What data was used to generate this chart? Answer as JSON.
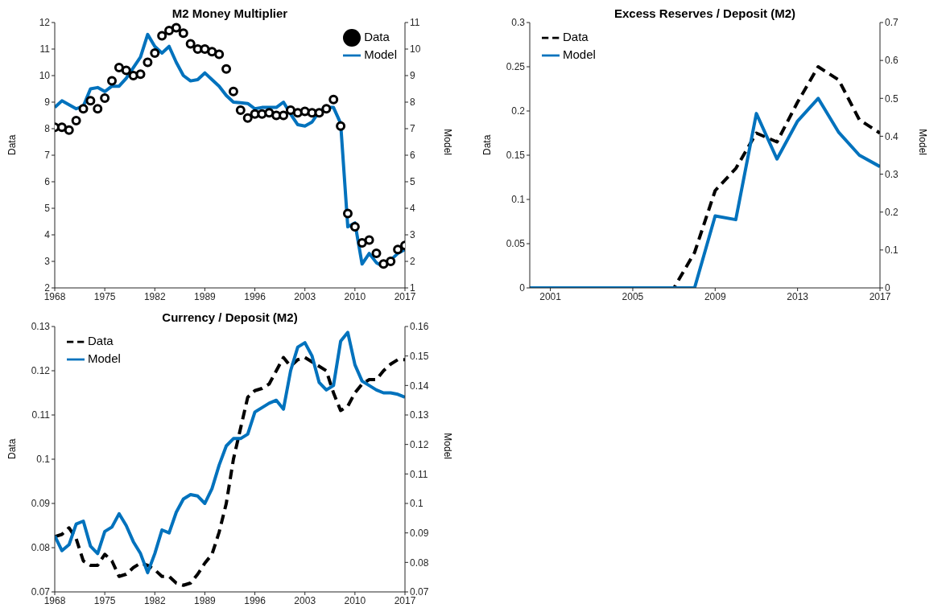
{
  "chart_data": [
    {
      "type": "line",
      "title": "M2 Money Multiplier",
      "ylabel": "Data",
      "y2label": "Model",
      "x": [
        1968,
        1969,
        1970,
        1971,
        1972,
        1973,
        1974,
        1975,
        1976,
        1977,
        1978,
        1979,
        1980,
        1981,
        1982,
        1983,
        1984,
        1985,
        1986,
        1987,
        1988,
        1989,
        1990,
        1991,
        1992,
        1993,
        1994,
        1995,
        1996,
        1997,
        1998,
        1999,
        2000,
        2001,
        2002,
        2003,
        2004,
        2005,
        2006,
        2007,
        2008,
        2009,
        2010,
        2011,
        2012,
        2013,
        2014,
        2015,
        2016,
        2017
      ],
      "series": [
        {
          "name": "Data",
          "type": "scatter",
          "color": "#000000",
          "marker": "circle",
          "values": [
            8.05,
            8.05,
            7.95,
            8.3,
            8.75,
            9.05,
            8.75,
            9.15,
            9.8,
            10.3,
            10.2,
            10.0,
            10.05,
            10.5,
            10.85,
            11.5,
            11.7,
            11.8,
            11.6,
            11.2,
            11.0,
            11.0,
            10.9,
            10.8,
            10.25,
            9.4,
            8.7,
            8.4,
            8.55,
            8.55,
            8.6,
            8.5,
            8.5,
            8.7,
            8.6,
            8.65,
            8.6,
            8.6,
            8.75,
            9.1,
            8.1,
            4.8,
            4.3,
            3.7,
            3.8,
            3.3,
            2.9,
            3.0,
            3.45,
            3.6
          ]
        },
        {
          "name": "Model",
          "type": "line",
          "axis": "y2",
          "color": "#0072bd",
          "values": [
            7.8,
            8.05,
            7.9,
            7.75,
            7.85,
            8.5,
            8.55,
            8.4,
            8.6,
            8.6,
            8.9,
            9.3,
            9.7,
            10.55,
            10.1,
            9.85,
            10.1,
            9.5,
            9.0,
            8.8,
            8.85,
            9.1,
            8.85,
            8.6,
            8.25,
            8.0,
            7.98,
            7.95,
            7.75,
            7.8,
            7.8,
            7.8,
            8.0,
            7.55,
            7.15,
            7.1,
            7.25,
            7.65,
            7.8,
            7.8,
            7.2,
            3.3,
            3.45,
            1.9,
            2.3,
            1.95,
            1.8,
            2.05,
            2.3,
            2.45
          ]
        }
      ],
      "xlim": [
        1968,
        2017
      ],
      "xticks": [
        1968,
        1975,
        1982,
        1989,
        1996,
        2003,
        2010,
        2017
      ],
      "ylim": [
        2,
        12
      ],
      "yticks": [
        2,
        3,
        4,
        5,
        6,
        7,
        8,
        9,
        10,
        11,
        12
      ],
      "y2lim": [
        1,
        11
      ],
      "y2ticks": [
        1,
        2,
        3,
        4,
        5,
        6,
        7,
        8,
        9,
        10,
        11
      ],
      "legend": "top right",
      "grid": false
    },
    {
      "type": "line",
      "title": "Excess Reserves / Deposit (M2)",
      "ylabel": "Data",
      "y2label": "Model",
      "x": [
        2000,
        2001,
        2002,
        2003,
        2004,
        2005,
        2006,
        2007,
        2008,
        2009,
        2010,
        2011,
        2012,
        2013,
        2014,
        2015,
        2016,
        2017
      ],
      "series": [
        {
          "name": "Data",
          "color": "#000000",
          "line_style": "dashed",
          "values": [
            0,
            0,
            0,
            0,
            0,
            0,
            0,
            0,
            0.04,
            0.11,
            0.135,
            0.175,
            0.165,
            0.21,
            0.25,
            0.235,
            0.19,
            0.175
          ]
        },
        {
          "name": "Model",
          "axis": "y2",
          "color": "#0072bd",
          "values": [
            0,
            0,
            0,
            0,
            0,
            0,
            0,
            0,
            0,
            0.19,
            0.18,
            0.46,
            0.34,
            0.44,
            0.5,
            0.41,
            0.35,
            0.32
          ]
        }
      ],
      "xlim": [
        2000,
        2017
      ],
      "xticks": [
        2001,
        2005,
        2009,
        2013,
        2017
      ],
      "ylim": [
        0,
        0.3
      ],
      "yticks": [
        0,
        0.05,
        0.1,
        0.15,
        0.2,
        0.25,
        0.3
      ],
      "y2lim": [
        0,
        0.7
      ],
      "y2ticks": [
        0,
        0.1,
        0.2,
        0.3,
        0.4,
        0.5,
        0.6,
        0.7
      ],
      "legend": "top left",
      "grid": false
    },
    {
      "type": "line",
      "title": "Currency / Deposit (M2)",
      "ylabel": "Data",
      "y2label": "Model",
      "x": [
        1968,
        1969,
        1970,
        1971,
        1972,
        1973,
        1974,
        1975,
        1976,
        1977,
        1978,
        1979,
        1980,
        1981,
        1982,
        1983,
        1984,
        1985,
        1986,
        1987,
        1988,
        1989,
        1990,
        1991,
        1992,
        1993,
        1994,
        1995,
        1996,
        1997,
        1998,
        1999,
        2000,
        2001,
        2002,
        2003,
        2004,
        2005,
        2006,
        2007,
        2008,
        2009,
        2010,
        2011,
        2012,
        2013,
        2014,
        2015,
        2016,
        2017
      ],
      "series": [
        {
          "name": "Data",
          "color": "#000000",
          "line_style": "dashed",
          "values": [
            0.0825,
            0.083,
            0.0845,
            0.082,
            0.077,
            0.076,
            0.076,
            0.0785,
            0.077,
            0.0735,
            0.074,
            0.0755,
            0.0765,
            0.076,
            0.075,
            0.0735,
            0.0735,
            0.072,
            0.0715,
            0.072,
            0.074,
            0.0765,
            0.0785,
            0.0835,
            0.09,
            0.1,
            0.107,
            0.114,
            0.1155,
            0.116,
            0.117,
            0.12,
            0.123,
            0.121,
            0.1225,
            0.123,
            0.122,
            0.121,
            0.12,
            0.115,
            0.111,
            0.112,
            0.115,
            0.117,
            0.118,
            0.118,
            0.12,
            0.1215,
            0.1225,
            0.1225
          ]
        },
        {
          "name": "Model",
          "axis": "y2",
          "color": "#0072bd",
          "values": [
            0.089,
            0.084,
            0.086,
            0.093,
            0.094,
            0.0855,
            0.083,
            0.0905,
            0.092,
            0.0965,
            0.0925,
            0.087,
            0.083,
            0.0765,
            0.083,
            0.091,
            0.09,
            0.097,
            0.1015,
            0.103,
            0.1025,
            0.1,
            0.105,
            0.113,
            0.1195,
            0.122,
            0.122,
            0.1235,
            0.131,
            0.1325,
            0.134,
            0.135,
            0.132,
            0.145,
            0.153,
            0.1545,
            0.15,
            0.141,
            0.1385,
            0.14,
            0.155,
            0.158,
            0.147,
            0.1415,
            0.14,
            0.1385,
            0.1375,
            0.1375,
            0.137,
            0.136
          ]
        }
      ],
      "xlim": [
        1968,
        2017
      ],
      "xticks": [
        1968,
        1975,
        1982,
        1989,
        1996,
        2003,
        2010,
        2017
      ],
      "ylim": [
        0.07,
        0.13
      ],
      "yticks": [
        0.07,
        0.08,
        0.09,
        0.1,
        0.11,
        0.12,
        0.13
      ],
      "y2lim": [
        0.07,
        0.16
      ],
      "y2ticks": [
        0.07,
        0.08,
        0.09,
        0.1,
        0.11,
        0.12,
        0.13,
        0.14,
        0.15,
        0.16
      ],
      "legend": "top left",
      "grid": false
    }
  ]
}
